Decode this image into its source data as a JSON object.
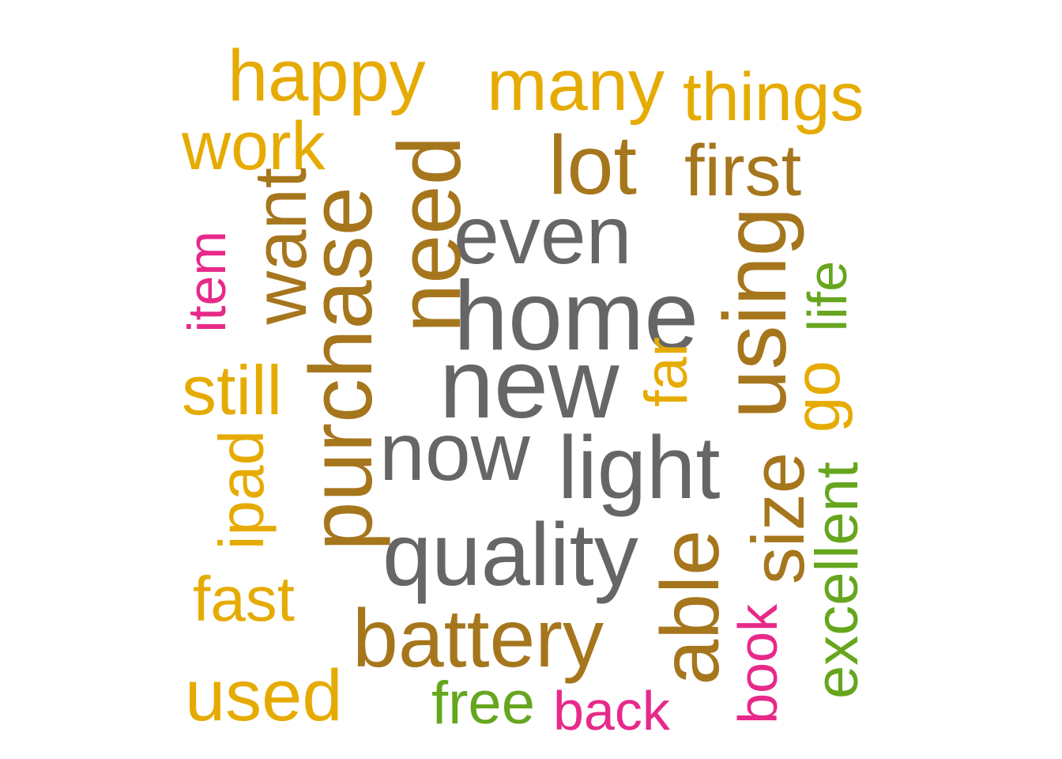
{
  "colors": {
    "gold": "#E6AB02",
    "brown": "#A6761D",
    "grey": "#666666",
    "pink": "#E7298A",
    "green": "#66A61E"
  },
  "words": {
    "happy": "happy",
    "many": "many",
    "things": "things",
    "work": "work",
    "lot": "lot",
    "first": "first",
    "even": "even",
    "home": "home",
    "new": "new",
    "now": "now",
    "light": "light",
    "quality": "quality",
    "battery": "battery",
    "still": "still",
    "fast": "fast",
    "used": "used",
    "free": "free",
    "back": "back",
    "item": "item",
    "want": "want",
    "purchase": "purchase",
    "need": "need",
    "ipad": "ipad",
    "far": "far",
    "using": "using",
    "go": "go",
    "life": "life",
    "size": "size",
    "excellent": "excellent",
    "able": "able",
    "book": "book"
  }
}
